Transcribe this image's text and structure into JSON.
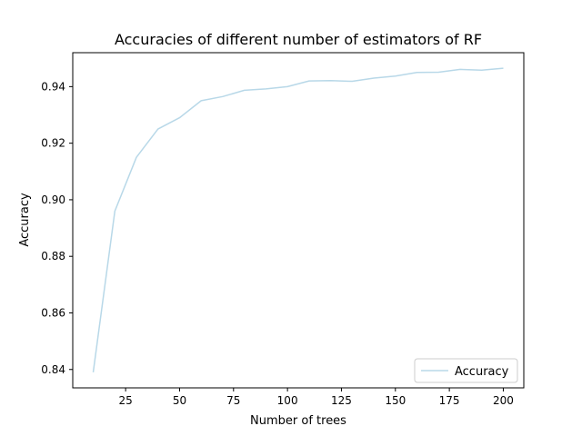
{
  "chart_data": {
    "type": "line",
    "title": "Accuracies of different number of estimators of RF",
    "xlabel": "Number of trees",
    "ylabel": "Accuracy",
    "xlim": [
      0.5,
      209.5
    ],
    "ylim": [
      0.8335,
      0.952
    ],
    "xticks": [
      25,
      50,
      75,
      100,
      125,
      150,
      175,
      200
    ],
    "yticks": [
      0.84,
      0.86,
      0.88,
      0.9,
      0.92,
      0.94
    ],
    "ytick_labels": [
      "0.84",
      "0.86",
      "0.88",
      "0.90",
      "0.92",
      "0.94"
    ],
    "grid": false,
    "legend_position": "lower-right",
    "series": [
      {
        "name": "Accuracy",
        "color": "#b8d8e8",
        "x": [
          10,
          20,
          30,
          40,
          50,
          60,
          70,
          80,
          90,
          100,
          110,
          120,
          130,
          140,
          150,
          160,
          170,
          180,
          190,
          200
        ],
        "y": [
          0.839,
          0.896,
          0.915,
          0.925,
          0.929,
          0.935,
          0.9365,
          0.9387,
          0.9392,
          0.94,
          0.942,
          0.9421,
          0.9419,
          0.943,
          0.9437,
          0.945,
          0.9451,
          0.9461,
          0.9458,
          0.9465
        ]
      }
    ]
  }
}
